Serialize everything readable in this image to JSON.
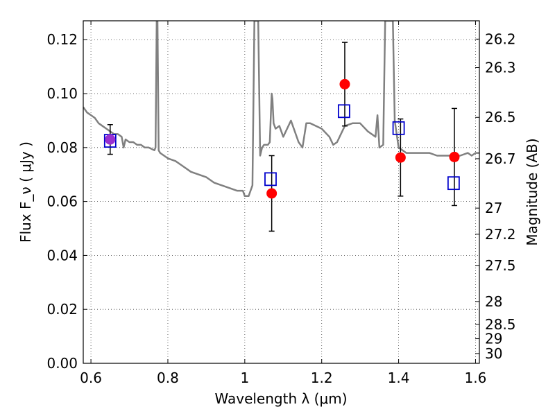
{
  "chart_data": {
    "type": "scatter",
    "xlabel": "Wavelength  λ (μm)",
    "ylabel": "Flux  F_ν  ( μJy )",
    "y2label": "Magnitude (AB)",
    "xlim": [
      0.58,
      1.61
    ],
    "ylim": [
      0.0,
      0.127
    ],
    "x_ticks": [
      "0.6",
      "0.8",
      "1",
      "1.2",
      "1.4",
      "1.6"
    ],
    "x_tick_values": [
      0.6,
      0.8,
      1.0,
      1.2,
      1.4,
      1.6
    ],
    "y_ticks": [
      "0.00",
      "0.02",
      "0.04",
      "0.06",
      "0.08",
      "0.10",
      "0.12"
    ],
    "y_tick_values": [
      0.0,
      0.02,
      0.04,
      0.06,
      0.08,
      0.1,
      0.12
    ],
    "y2_ticks": [
      "26.2",
      "26.3",
      "26.5",
      "26.7",
      "27",
      "27.2",
      "27.5",
      "28",
      "28.5",
      "29",
      "30"
    ],
    "y2_tick_values": [
      26.2,
      26.3,
      26.5,
      26.7,
      27.0,
      27.2,
      27.5,
      28.0,
      28.5,
      29.0,
      30.0
    ],
    "grid": true,
    "colors": {
      "model": "#808080",
      "observed": "#ff0000",
      "model_band": "#0000cc",
      "errorbar": "#000000",
      "overlap_marker": "#9b30d0"
    },
    "model_spectrum": {
      "x": [
        0.58,
        0.59,
        0.6,
        0.61,
        0.62,
        0.63,
        0.64,
        0.65,
        0.66,
        0.67,
        0.68,
        0.685,
        0.69,
        0.7,
        0.71,
        0.72,
        0.73,
        0.74,
        0.75,
        0.765,
        0.768,
        0.771,
        0.773,
        0.776,
        0.78,
        0.8,
        0.82,
        0.84,
        0.86,
        0.88,
        0.9,
        0.92,
        0.94,
        0.96,
        0.98,
        0.995,
        1.0,
        1.01,
        1.02,
        1.025,
        1.03,
        1.035,
        1.04,
        1.045,
        1.05,
        1.06,
        1.065,
        1.07,
        1.072,
        1.075,
        1.08,
        1.09,
        1.1,
        1.12,
        1.14,
        1.15,
        1.16,
        1.17,
        1.2,
        1.22,
        1.23,
        1.24,
        1.26,
        1.28,
        1.3,
        1.32,
        1.34,
        1.345,
        1.35,
        1.36,
        1.365,
        1.37,
        1.375,
        1.38,
        1.385,
        1.39,
        1.4,
        1.41,
        1.42,
        1.44,
        1.46,
        1.48,
        1.5,
        1.52,
        1.54,
        1.56,
        1.58,
        1.59,
        1.6,
        1.61
      ],
      "y": [
        0.095,
        0.093,
        0.092,
        0.091,
        0.089,
        0.088,
        0.087,
        0.086,
        0.085,
        0.085,
        0.084,
        0.08,
        0.083,
        0.082,
        0.082,
        0.081,
        0.081,
        0.08,
        0.08,
        0.079,
        0.08,
        0.127,
        0.127,
        0.079,
        0.078,
        0.076,
        0.075,
        0.073,
        0.071,
        0.07,
        0.069,
        0.067,
        0.066,
        0.065,
        0.064,
        0.064,
        0.062,
        0.062,
        0.066,
        0.127,
        0.127,
        0.127,
        0.077,
        0.08,
        0.081,
        0.081,
        0.082,
        0.1,
        0.098,
        0.089,
        0.087,
        0.088,
        0.084,
        0.09,
        0.082,
        0.08,
        0.089,
        0.089,
        0.087,
        0.084,
        0.081,
        0.082,
        0.088,
        0.089,
        0.089,
        0.086,
        0.084,
        0.092,
        0.08,
        0.081,
        0.127,
        0.127,
        0.127,
        0.127,
        0.127,
        0.09,
        0.08,
        0.079,
        0.078,
        0.078,
        0.078,
        0.078,
        0.077,
        0.077,
        0.077,
        0.077,
        0.078,
        0.077,
        0.078,
        0.078
      ]
    },
    "observed": [
      {
        "x": 0.65,
        "y": 0.083,
        "yerr": 0.0055,
        "overlap": true
      },
      {
        "x": 1.07,
        "y": 0.063,
        "yerr": 0.014
      },
      {
        "x": 1.26,
        "y": 0.1035,
        "yerr": 0.0155
      },
      {
        "x": 1.405,
        "y": 0.0763,
        "yerr": 0.0143
      },
      {
        "x": 1.545,
        "y": 0.0765,
        "yerr": 0.018
      }
    ],
    "model_band": [
      {
        "x": 0.65,
        "y": 0.0825
      },
      {
        "x": 1.067,
        "y": 0.0683
      },
      {
        "x": 1.258,
        "y": 0.0935
      },
      {
        "x": 1.4,
        "y": 0.0872
      },
      {
        "x": 1.543,
        "y": 0.0668
      }
    ]
  }
}
